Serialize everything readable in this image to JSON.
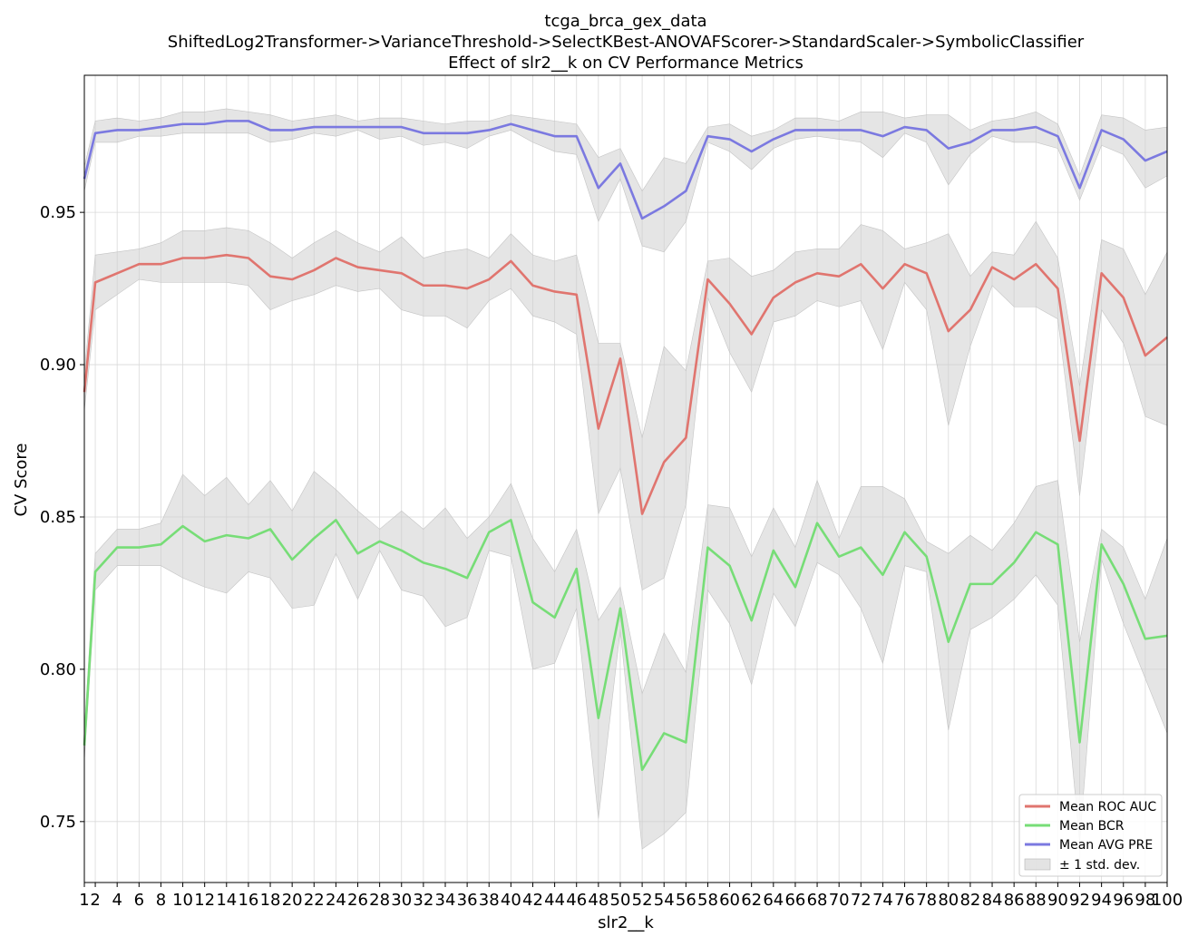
{
  "chart_data": {
    "type": "line",
    "title_lines": [
      "tcga_brca_gex_data",
      "ShiftedLog2Transformer->VarianceThreshold->SelectKBest-ANOVAFScorer->StandardScaler->SymbolicClassifier",
      "Effect of slr2__k on CV Performance Metrics"
    ],
    "xlabel": "slr2__k",
    "ylabel": "CV Score",
    "x": [
      1,
      2,
      4,
      6,
      8,
      10,
      12,
      14,
      16,
      18,
      20,
      22,
      24,
      26,
      28,
      30,
      32,
      34,
      36,
      38,
      40,
      42,
      44,
      46,
      48,
      50,
      52,
      54,
      56,
      58,
      60,
      62,
      64,
      66,
      68,
      70,
      72,
      74,
      76,
      78,
      80,
      82,
      84,
      86,
      88,
      90,
      92,
      94,
      96,
      98,
      100
    ],
    "xtick_labels": [
      "1",
      "2",
      "4",
      "6",
      "8",
      "10",
      "12",
      "14",
      "16",
      "18",
      "20",
      "22",
      "24",
      "26",
      "28",
      "30",
      "32",
      "34",
      "36",
      "38",
      "40",
      "42",
      "44",
      "46",
      "48",
      "50",
      "52",
      "54",
      "56",
      "58",
      "60",
      "62",
      "64",
      "66",
      "68",
      "70",
      "72",
      "74",
      "76",
      "78",
      "80",
      "82",
      "84",
      "86",
      "88",
      "90",
      "92",
      "94",
      "96",
      "98",
      "100"
    ],
    "yticks": [
      0.75,
      0.8,
      0.85,
      0.9,
      0.95
    ],
    "ytick_labels": [
      "0.75",
      "0.80",
      "0.85",
      "0.90",
      "0.95"
    ],
    "ylim": [
      0.73,
      0.995
    ],
    "grid": true,
    "legend_position": "bottom-right",
    "series": [
      {
        "name": "Mean ROC AUC",
        "color": "#e0756f",
        "values": [
          0.891,
          0.927,
          0.93,
          0.933,
          0.933,
          0.935,
          0.935,
          0.936,
          0.935,
          0.929,
          0.928,
          0.931,
          0.935,
          0.932,
          0.931,
          0.93,
          0.926,
          0.926,
          0.925,
          0.928,
          0.934,
          0.926,
          0.924,
          0.923,
          0.879,
          0.902,
          0.851,
          0.868,
          0.876,
          0.928,
          0.92,
          0.91,
          0.922,
          0.927,
          0.93,
          0.929,
          0.933,
          0.925,
          0.933,
          0.93,
          0.911,
          0.918,
          0.932,
          0.928,
          0.933,
          0.925,
          0.875,
          0.93,
          0.922,
          0.903,
          0.909
        ],
        "lower": [
          0.885,
          0.918,
          0.923,
          0.928,
          0.927,
          0.927,
          0.927,
          0.927,
          0.926,
          0.918,
          0.921,
          0.923,
          0.926,
          0.924,
          0.925,
          0.918,
          0.916,
          0.916,
          0.912,
          0.921,
          0.925,
          0.916,
          0.914,
          0.91,
          0.851,
          0.866,
          0.826,
          0.83,
          0.854,
          0.922,
          0.904,
          0.891,
          0.914,
          0.916,
          0.921,
          0.919,
          0.921,
          0.905,
          0.927,
          0.918,
          0.88,
          0.906,
          0.926,
          0.919,
          0.919,
          0.915,
          0.857,
          0.918,
          0.907,
          0.883,
          0.88
        ],
        "upper": [
          0.897,
          0.936,
          0.937,
          0.938,
          0.94,
          0.944,
          0.944,
          0.945,
          0.944,
          0.94,
          0.935,
          0.94,
          0.944,
          0.94,
          0.937,
          0.942,
          0.935,
          0.937,
          0.938,
          0.935,
          0.943,
          0.936,
          0.934,
          0.936,
          0.907,
          0.907,
          0.876,
          0.906,
          0.898,
          0.934,
          0.935,
          0.929,
          0.931,
          0.937,
          0.938,
          0.938,
          0.946,
          0.944,
          0.938,
          0.94,
          0.943,
          0.929,
          0.937,
          0.936,
          0.947,
          0.935,
          0.893,
          0.941,
          0.938,
          0.923,
          0.937
        ]
      },
      {
        "name": "Mean BCR",
        "color": "#77dd77",
        "values": [
          0.775,
          0.832,
          0.84,
          0.84,
          0.841,
          0.847,
          0.842,
          0.844,
          0.843,
          0.846,
          0.836,
          0.843,
          0.849,
          0.838,
          0.842,
          0.839,
          0.835,
          0.833,
          0.83,
          0.845,
          0.849,
          0.822,
          0.817,
          0.833,
          0.784,
          0.82,
          0.767,
          0.779,
          0.776,
          0.84,
          0.834,
          0.816,
          0.839,
          0.827,
          0.848,
          0.837,
          0.84,
          0.831,
          0.845,
          0.837,
          0.809,
          0.828,
          0.828,
          0.835,
          0.845,
          0.841,
          0.776,
          0.841,
          0.828,
          0.81,
          0.811
        ],
        "lower": [
          0.77,
          0.826,
          0.834,
          0.834,
          0.834,
          0.83,
          0.827,
          0.825,
          0.832,
          0.83,
          0.82,
          0.821,
          0.838,
          0.823,
          0.839,
          0.826,
          0.824,
          0.814,
          0.817,
          0.839,
          0.837,
          0.8,
          0.802,
          0.82,
          0.751,
          0.813,
          0.741,
          0.746,
          0.753,
          0.826,
          0.815,
          0.795,
          0.825,
          0.814,
          0.835,
          0.831,
          0.82,
          0.802,
          0.834,
          0.832,
          0.78,
          0.813,
          0.817,
          0.823,
          0.831,
          0.821,
          0.743,
          0.836,
          0.815,
          0.797,
          0.779
        ],
        "upper": [
          0.78,
          0.838,
          0.846,
          0.846,
          0.848,
          0.864,
          0.857,
          0.863,
          0.854,
          0.862,
          0.852,
          0.865,
          0.859,
          0.852,
          0.846,
          0.852,
          0.846,
          0.853,
          0.843,
          0.85,
          0.861,
          0.843,
          0.832,
          0.846,
          0.816,
          0.827,
          0.792,
          0.812,
          0.799,
          0.854,
          0.853,
          0.837,
          0.853,
          0.84,
          0.862,
          0.843,
          0.86,
          0.86,
          0.856,
          0.842,
          0.838,
          0.844,
          0.839,
          0.848,
          0.86,
          0.862,
          0.809,
          0.846,
          0.84,
          0.823,
          0.843
        ]
      },
      {
        "name": "Mean AVG PRE",
        "color": "#7b79e0",
        "values": [
          0.961,
          0.976,
          0.977,
          0.977,
          0.978,
          0.979,
          0.979,
          0.98,
          0.98,
          0.977,
          0.977,
          0.978,
          0.978,
          0.978,
          0.978,
          0.978,
          0.976,
          0.976,
          0.976,
          0.977,
          0.979,
          0.977,
          0.975,
          0.975,
          0.958,
          0.966,
          0.948,
          0.952,
          0.957,
          0.975,
          0.974,
          0.97,
          0.974,
          0.977,
          0.977,
          0.977,
          0.977,
          0.975,
          0.978,
          0.977,
          0.971,
          0.973,
          0.977,
          0.977,
          0.978,
          0.975,
          0.958,
          0.977,
          0.974,
          0.967,
          0.97
        ],
        "lower": [
          0.957,
          0.973,
          0.973,
          0.975,
          0.975,
          0.976,
          0.976,
          0.976,
          0.976,
          0.973,
          0.974,
          0.976,
          0.975,
          0.977,
          0.974,
          0.975,
          0.972,
          0.973,
          0.971,
          0.975,
          0.977,
          0.973,
          0.97,
          0.969,
          0.947,
          0.961,
          0.939,
          0.937,
          0.947,
          0.973,
          0.97,
          0.964,
          0.971,
          0.974,
          0.975,
          0.974,
          0.973,
          0.968,
          0.976,
          0.973,
          0.959,
          0.969,
          0.975,
          0.973,
          0.973,
          0.971,
          0.954,
          0.972,
          0.969,
          0.958,
          0.962
        ],
        "upper": [
          0.965,
          0.98,
          0.981,
          0.98,
          0.981,
          0.983,
          0.983,
          0.984,
          0.983,
          0.982,
          0.98,
          0.981,
          0.982,
          0.98,
          0.981,
          0.981,
          0.98,
          0.979,
          0.98,
          0.98,
          0.982,
          0.981,
          0.98,
          0.979,
          0.968,
          0.971,
          0.957,
          0.968,
          0.966,
          0.978,
          0.979,
          0.975,
          0.977,
          0.981,
          0.981,
          0.98,
          0.983,
          0.983,
          0.981,
          0.982,
          0.982,
          0.977,
          0.98,
          0.981,
          0.983,
          0.979,
          0.962,
          0.982,
          0.981,
          0.977,
          0.978
        ]
      }
    ],
    "band_label": "± 1 std. dev.",
    "band_color": "#cccccc"
  }
}
